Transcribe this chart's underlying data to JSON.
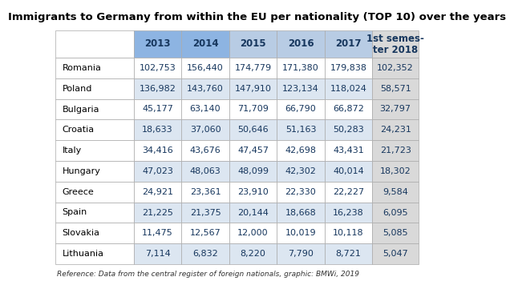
{
  "title": "Immigrants to Germany from within the EU per nationality (TOP 10) over the years",
  "col_headers": [
    "",
    "2013",
    "2014",
    "2015",
    "2016",
    "2017",
    "1st semes-\nter 2018"
  ],
  "rows": [
    [
      "Romania",
      "102,753",
      "156,440",
      "174,779",
      "171,380",
      "179,838",
      "102,352"
    ],
    [
      "Poland",
      "136,982",
      "143,760",
      "147,910",
      "123,134",
      "118,024",
      "58,571"
    ],
    [
      "Bulgaria",
      "45,177",
      "63,140",
      "71,709",
      "66,790",
      "66,872",
      "32,797"
    ],
    [
      "Croatia",
      "18,633",
      "37,060",
      "50,646",
      "51,163",
      "50,283",
      "24,231"
    ],
    [
      "Italy",
      "34,416",
      "43,676",
      "47,457",
      "42,698",
      "43,431",
      "21,723"
    ],
    [
      "Hungary",
      "47,023",
      "48,063",
      "48,099",
      "42,302",
      "40,014",
      "18,302"
    ],
    [
      "Greece",
      "24,921",
      "23,361",
      "23,910",
      "22,330",
      "22,227",
      "9,584"
    ],
    [
      "Spain",
      "21,225",
      "21,375",
      "20,144",
      "18,668",
      "16,238",
      "6,095"
    ],
    [
      "Slovakia",
      "11,475",
      "12,567",
      "12,000",
      "10,019",
      "10,118",
      "5,085"
    ],
    [
      "Lithuania",
      "7,114",
      "6,832",
      "8,220",
      "7,790",
      "8,721",
      "5,047"
    ]
  ],
  "col_header_bg": [
    "#ffffff",
    "#8db4e2",
    "#8db4e2",
    "#b8cce4",
    "#b8cce4",
    "#b8cce4",
    "#d9d9d9"
  ],
  "row_bg_even": "#ffffff",
  "row_bg_odd": "#dce6f1",
  "last_col_data_bg": "#d9d9d9",
  "header_text_color": "#17375e",
  "data_text_color": "#17375e",
  "country_text_color": "#000000",
  "edge_color": "#aaaaaa",
  "title_fontsize": 9.5,
  "header_fontsize": 8.5,
  "data_fontsize": 8,
  "ref_fontsize": 6.5,
  "reference_text": "Reference: Data from the central register of foreign nationals, graphic: BMWi, 2019"
}
